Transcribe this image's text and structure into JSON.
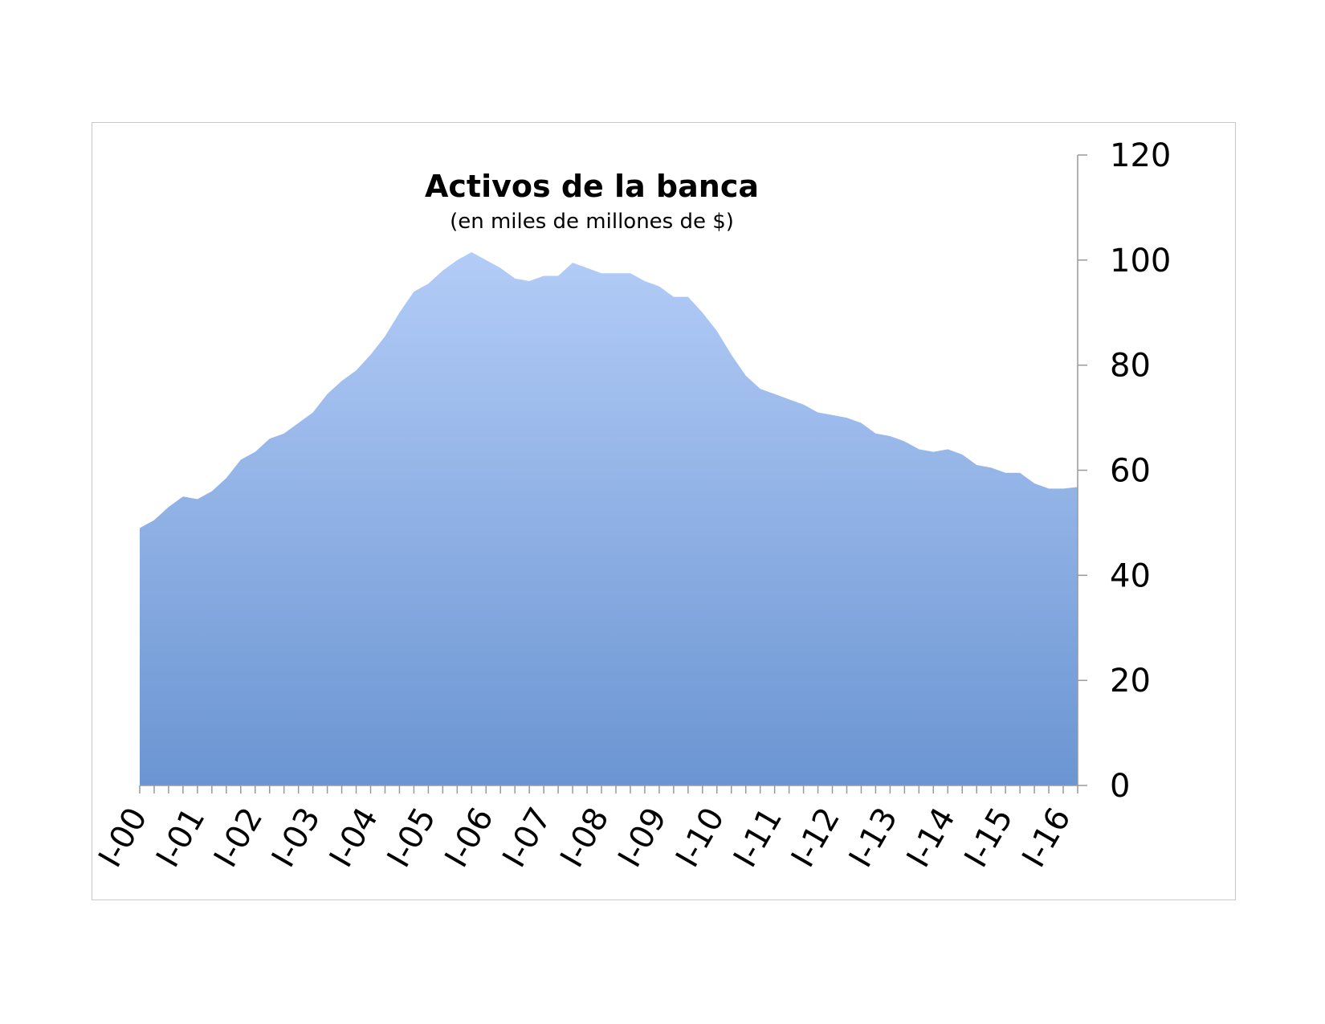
{
  "chart_data": {
    "type": "area",
    "title": "Activos de la banca",
    "subtitle": "(en miles de millones de $)",
    "xlabel": "",
    "ylabel": "",
    "ylim": [
      0,
      120
    ],
    "y_ticks": [
      "0",
      "20",
      "40",
      "60",
      "80",
      "100",
      "120"
    ],
    "y_axis_side": "right",
    "grid": false,
    "x_tick_labels": [
      "I-00",
      "I-01",
      "I-02",
      "I-03",
      "I-04",
      "I-05",
      "I-06",
      "I-07",
      "I-08",
      "I-09",
      "I-10",
      "I-11",
      "I-12",
      "I-13",
      "I-14",
      "I-15",
      "I-16"
    ],
    "x": [
      "I-00",
      "II-00",
      "III-00",
      "IV-00",
      "I-01",
      "II-01",
      "III-01",
      "IV-01",
      "I-02",
      "II-02",
      "III-02",
      "IV-02",
      "I-03",
      "II-03",
      "III-03",
      "IV-03",
      "I-04",
      "II-04",
      "III-04",
      "IV-04",
      "I-05",
      "II-05",
      "III-05",
      "IV-05",
      "I-06",
      "II-06",
      "III-06",
      "IV-06",
      "I-07",
      "II-07",
      "III-07",
      "IV-07",
      "I-08",
      "II-08",
      "III-08",
      "IV-08",
      "I-09",
      "II-09",
      "III-09",
      "IV-09",
      "I-10",
      "II-10",
      "III-10",
      "IV-10",
      "I-11",
      "II-11",
      "III-11",
      "IV-11",
      "I-12",
      "II-12",
      "III-12",
      "IV-12",
      "I-13",
      "II-13",
      "III-13",
      "IV-13",
      "I-14",
      "II-14",
      "III-14",
      "IV-14",
      "I-15",
      "II-15",
      "III-15",
      "IV-15",
      "I-16",
      "II-16"
    ],
    "series": [
      {
        "values": [
          49,
          50.5,
          53,
          55,
          54.5,
          56,
          58.5,
          62,
          63.5,
          66,
          67,
          69,
          71,
          74.5,
          77,
          79,
          82,
          85.5,
          90,
          94,
          95.5,
          98,
          100,
          101.5,
          100,
          98.5,
          96.5,
          96,
          97,
          97,
          99.5,
          98.5,
          97.5,
          97.5,
          97.5,
          96,
          95,
          93,
          93,
          90,
          86.5,
          82,
          78,
          75.5,
          74.5,
          73.5,
          72.5,
          71,
          70.5,
          70,
          69,
          67,
          66.5,
          65.5,
          64,
          63.5,
          64,
          63,
          61,
          60.5,
          59.5,
          59.5,
          57.5,
          56.5,
          56.5,
          56.8
        ]
      }
    ],
    "colors": {
      "area_top": "#b3ccf7",
      "area_bottom": "#6b95d2",
      "axis": "#999999",
      "frame": "#c8c8c8"
    }
  }
}
